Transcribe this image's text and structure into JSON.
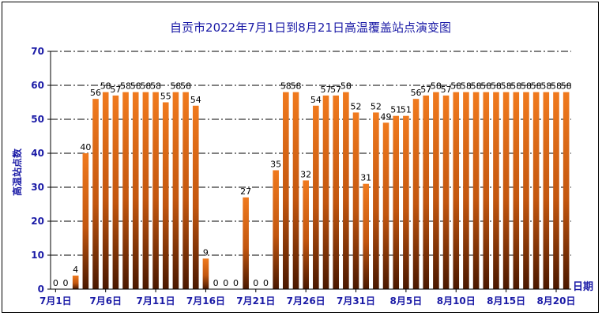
{
  "chart_data": {
    "type": "bar",
    "title": "自贡市2022年7月1日到8月21日高温覆盖站点演变图",
    "ylabel": "高温站点数",
    "xlabel": "日期",
    "ylim": [
      0,
      70
    ],
    "yticks": [
      0,
      10,
      20,
      30,
      40,
      50,
      60,
      70
    ],
    "grid": true,
    "categories": [
      "7月1日",
      "7月2日",
      "7月3日",
      "7月4日",
      "7月5日",
      "7月6日",
      "7月7日",
      "7月8日",
      "7月9日",
      "7月10日",
      "7月11日",
      "7月12日",
      "7月13日",
      "7月14日",
      "7月15日",
      "7月16日",
      "7月17日",
      "7月18日",
      "7月19日",
      "7月20日",
      "7月21日",
      "7月22日",
      "7月23日",
      "7月24日",
      "7月25日",
      "7月26日",
      "7月27日",
      "7月28日",
      "7月29日",
      "7月30日",
      "7月31日",
      "8月1日",
      "8月2日",
      "8月3日",
      "8月4日",
      "8月5日",
      "8月6日",
      "8月7日",
      "8月8日",
      "8月9日",
      "8月10日",
      "8月11日",
      "8月12日",
      "8月13日",
      "8月14日",
      "8月15日",
      "8月16日",
      "8月17日",
      "8月18日",
      "8月19日",
      "8月20日",
      "8月21日"
    ],
    "tick_labels": [
      "7月1日",
      "7月6日",
      "7月11日",
      "7月16日",
      "7月21日",
      "7月26日",
      "7月31日",
      "8月5日",
      "8月10日",
      "8月15日",
      "8月20日"
    ],
    "tick_every": 5,
    "values": [
      0,
      0,
      4,
      40,
      56,
      58,
      57,
      58,
      58,
      58,
      58,
      55,
      58,
      58,
      54,
      9,
      0,
      0,
      0,
      27,
      0,
      0,
      35,
      58,
      58,
      32,
      54,
      57,
      57,
      58,
      52,
      31,
      52,
      49,
      51,
      51,
      56,
      57,
      58,
      57,
      58,
      58,
      58,
      58,
      58,
      58,
      58,
      58,
      58,
      58,
      58,
      58
    ],
    "colors": {
      "bar_top": "#f07a1e",
      "bar_bottom": "#4a1800",
      "title": "#1a1aa6",
      "tick": "#1a1aa6"
    }
  }
}
